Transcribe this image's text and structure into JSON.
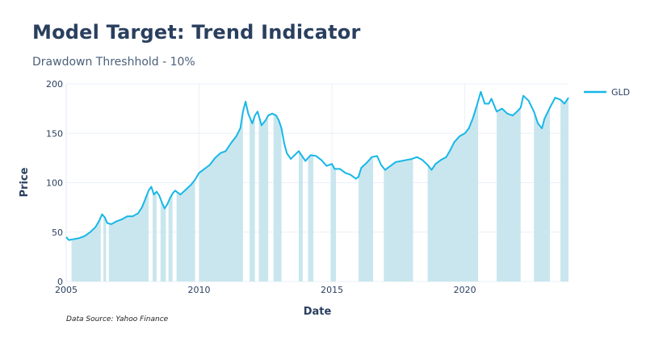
{
  "header": {
    "title": "Model Target: Trend Indicator",
    "subtitle": "Drawdown Threshhold - 10%"
  },
  "footer": {
    "source": "Data Source: Yahoo Finance"
  },
  "colors": {
    "line": "#17b7e8",
    "band": "#c9e6ee",
    "grid": "#ebf0f8",
    "text": "#2a3f5f"
  },
  "chart_data": {
    "type": "line",
    "title": "Model Target: Trend Indicator",
    "subtitle": "Drawdown Threshhold - 10%",
    "xlabel": "Date",
    "ylabel": "Price",
    "xlim": [
      2005.0,
      2023.9
    ],
    "ylim": [
      0,
      200
    ],
    "x_ticks": [
      2005,
      2010,
      2015,
      2020
    ],
    "x_tick_labels": [
      "2005",
      "2010",
      "2015",
      "2020"
    ],
    "y_ticks": [
      0,
      50,
      100,
      150,
      200
    ],
    "y_tick_labels": [
      "0",
      "50",
      "100",
      "150",
      "200"
    ],
    "grid": true,
    "legend_position": "top-right",
    "series": [
      {
        "name": "GLD",
        "x": [
          2005.0,
          2005.1,
          2005.3,
          2005.5,
          2005.7,
          2005.9,
          2006.1,
          2006.25,
          2006.35,
          2006.45,
          2006.55,
          2006.7,
          2006.9,
          2007.1,
          2007.3,
          2007.5,
          2007.7,
          2007.85,
          2008.0,
          2008.1,
          2008.2,
          2008.3,
          2008.4,
          2008.5,
          2008.6,
          2008.7,
          2008.8,
          2008.9,
          2009.0,
          2009.1,
          2009.2,
          2009.3,
          2009.5,
          2009.7,
          2009.85,
          2010.0,
          2010.2,
          2010.4,
          2010.6,
          2010.8,
          2011.0,
          2011.2,
          2011.4,
          2011.55,
          2011.65,
          2011.75,
          2011.85,
          2012.0,
          2012.1,
          2012.2,
          2012.35,
          2012.5,
          2012.6,
          2012.75,
          2012.9,
          2013.0,
          2013.1,
          2013.2,
          2013.3,
          2013.45,
          2013.6,
          2013.75,
          2013.9,
          2014.0,
          2014.2,
          2014.4,
          2014.6,
          2014.8,
          2015.0,
          2015.1,
          2015.3,
          2015.5,
          2015.7,
          2015.9,
          2016.0,
          2016.1,
          2016.3,
          2016.5,
          2016.7,
          2016.85,
          2017.0,
          2017.2,
          2017.4,
          2017.6,
          2017.8,
          2018.0,
          2018.2,
          2018.4,
          2018.6,
          2018.75,
          2018.9,
          2019.1,
          2019.3,
          2019.45,
          2019.6,
          2019.8,
          2020.0,
          2020.15,
          2020.3,
          2020.45,
          2020.6,
          2020.75,
          2020.9,
          2021.0,
          2021.2,
          2021.4,
          2021.6,
          2021.8,
          2022.0,
          2022.1,
          2022.2,
          2022.4,
          2022.6,
          2022.75,
          2022.9,
          2023.0,
          2023.2,
          2023.4,
          2023.6,
          2023.75,
          2023.9
        ],
        "values": [
          45,
          42,
          43,
          44,
          46,
          50,
          55,
          62,
          68,
          65,
          59,
          58,
          61,
          63,
          66,
          66,
          69,
          75,
          85,
          92,
          96,
          88,
          91,
          87,
          80,
          74,
          78,
          84,
          89,
          92,
          90,
          88,
          93,
          98,
          103,
          110,
          114,
          118,
          125,
          130,
          132,
          140,
          147,
          155,
          172,
          182,
          170,
          160,
          168,
          172,
          158,
          163,
          168,
          170,
          168,
          163,
          155,
          140,
          130,
          124,
          128,
          132,
          126,
          122,
          128,
          127,
          123,
          117,
          119,
          114,
          114,
          110,
          108,
          104,
          106,
          115,
          120,
          126,
          127,
          118,
          113,
          117,
          121,
          122,
          123,
          124,
          126,
          123,
          118,
          113,
          119,
          123,
          126,
          133,
          141,
          147,
          150,
          155,
          165,
          178,
          192,
          180,
          180,
          185,
          172,
          175,
          170,
          168,
          173,
          176,
          188,
          183,
          172,
          160,
          155,
          165,
          176,
          186,
          184,
          180,
          186
        ]
      }
    ],
    "shaded_regions_x": [
      [
        2005.2,
        2006.3
      ],
      [
        2006.4,
        2006.5
      ],
      [
        2006.6,
        2008.1
      ],
      [
        2008.25,
        2008.4
      ],
      [
        2008.55,
        2008.75
      ],
      [
        2008.85,
        2009.0
      ],
      [
        2009.15,
        2009.85
      ],
      [
        2010.0,
        2011.65
      ],
      [
        2011.9,
        2012.1
      ],
      [
        2012.25,
        2012.6
      ],
      [
        2012.8,
        2013.1
      ],
      [
        2013.75,
        2013.9
      ],
      [
        2014.1,
        2014.3
      ],
      [
        2014.95,
        2015.15
      ],
      [
        2016.0,
        2016.55
      ],
      [
        2016.95,
        2018.05
      ],
      [
        2018.6,
        2020.5
      ],
      [
        2021.2,
        2022.1
      ],
      [
        2022.6,
        2023.2
      ],
      [
        2023.6,
        2023.9
      ]
    ]
  }
}
